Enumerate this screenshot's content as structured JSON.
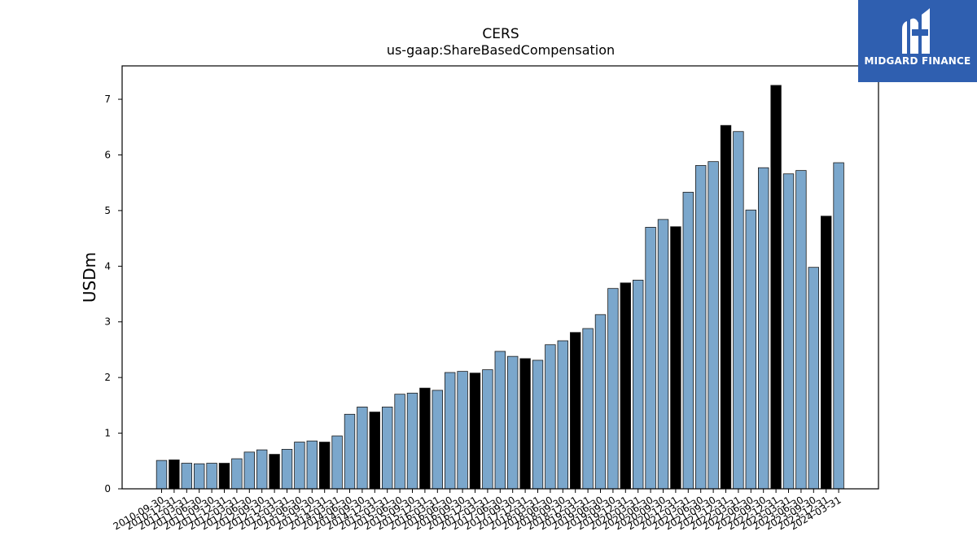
{
  "chart_data": {
    "type": "bar",
    "title": "CERS",
    "subtitle": "us-gaap:ShareBasedCompensation",
    "xlabel": "",
    "ylabel": "USDm",
    "ylim": [
      0,
      7.6
    ],
    "yticks": [
      0,
      1,
      2,
      3,
      4,
      5,
      6,
      7
    ],
    "grid": false,
    "colors": {
      "default": "#7ba7cc",
      "highlight": "#000000",
      "edge": "#1a1a1a"
    },
    "highlight_note_indices": [
      1,
      5,
      9,
      13,
      17,
      21,
      25,
      29,
      33,
      37,
      41,
      45,
      49,
      53
    ],
    "categories": [
      "2010-09-30",
      "2010-12-31",
      "2011-03-31",
      "2011-06-30",
      "2011-09-30",
      "2011-12-31",
      "2012-03-31",
      "2012-06-30",
      "2012-09-30",
      "2012-12-31",
      "2013-03-31",
      "2013-06-30",
      "2013-09-30",
      "2013-12-31",
      "2014-03-31",
      "2014-06-30",
      "2014-09-30",
      "2014-12-31",
      "2015-03-31",
      "2015-06-30",
      "2015-09-30",
      "2015-12-31",
      "2016-03-31",
      "2016-06-30",
      "2016-09-30",
      "2016-12-31",
      "2017-03-31",
      "2017-06-30",
      "2017-09-30",
      "2017-12-31",
      "2018-03-31",
      "2018-06-30",
      "2018-09-30",
      "2018-12-31",
      "2019-03-31",
      "2019-06-30",
      "2019-09-30",
      "2019-12-31",
      "2020-03-31",
      "2020-06-30",
      "2020-09-30",
      "2020-12-31",
      "2021-03-31",
      "2021-06-30",
      "2021-09-30",
      "2021-12-31",
      "2022-03-31",
      "2022-06-30",
      "2022-09-30",
      "2022-12-31",
      "2023-03-31",
      "2023-06-30",
      "2023-09-30",
      "2023-12-31",
      "2024-03-31"
    ],
    "values": [
      0.51,
      0.52,
      0.46,
      0.45,
      0.46,
      0.46,
      0.54,
      0.66,
      0.7,
      0.62,
      0.71,
      0.84,
      0.86,
      0.84,
      0.95,
      1.34,
      1.47,
      1.38,
      1.47,
      1.7,
      1.72,
      1.81,
      1.77,
      2.09,
      2.11,
      2.08,
      2.14,
      2.47,
      2.38,
      2.34,
      2.31,
      2.59,
      2.66,
      2.81,
      2.88,
      3.13,
      3.6,
      3.7,
      3.75,
      4.7,
      4.84,
      4.71,
      5.33,
      5.81,
      5.88,
      6.53,
      6.42,
      5.01,
      5.77,
      7.25,
      5.66,
      5.72,
      3.98,
      4.9,
      5.86
    ]
  },
  "logo": {
    "text": "MIDGARD FINANCE",
    "icon": "midgard-logo-icon"
  }
}
